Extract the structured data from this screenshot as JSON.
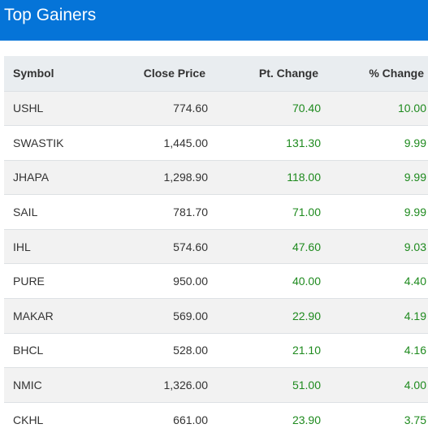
{
  "header": {
    "title": "Top Gainers"
  },
  "table": {
    "columns": [
      "Symbol",
      "Close Price",
      "Pt. Change",
      "% Change"
    ],
    "rows": [
      {
        "symbol": "USHL",
        "close": "774.60",
        "pt": "70.40",
        "pct": "10.00"
      },
      {
        "symbol": "SWASTIK",
        "close": "1,445.00",
        "pt": "131.30",
        "pct": "9.99"
      },
      {
        "symbol": "JHAPA",
        "close": "1,298.90",
        "pt": "118.00",
        "pct": "9.99"
      },
      {
        "symbol": "SAIL",
        "close": "781.70",
        "pt": "71.00",
        "pct": "9.99"
      },
      {
        "symbol": "IHL",
        "close": "574.60",
        "pt": "47.60",
        "pct": "9.03"
      },
      {
        "symbol": "PURE",
        "close": "950.00",
        "pt": "40.00",
        "pct": "4.40"
      },
      {
        "symbol": "MAKAR",
        "close": "569.00",
        "pt": "22.90",
        "pct": "4.19"
      },
      {
        "symbol": "BHCL",
        "close": "528.00",
        "pt": "21.10",
        "pct": "4.16"
      },
      {
        "symbol": "NMIC",
        "close": "1,326.00",
        "pt": "51.00",
        "pct": "4.00"
      },
      {
        "symbol": "CKHL",
        "close": "661.00",
        "pt": "23.90",
        "pct": "3.75"
      }
    ]
  },
  "colors": {
    "header_bg": "#0574d8",
    "positive": "#1e8a1e"
  }
}
